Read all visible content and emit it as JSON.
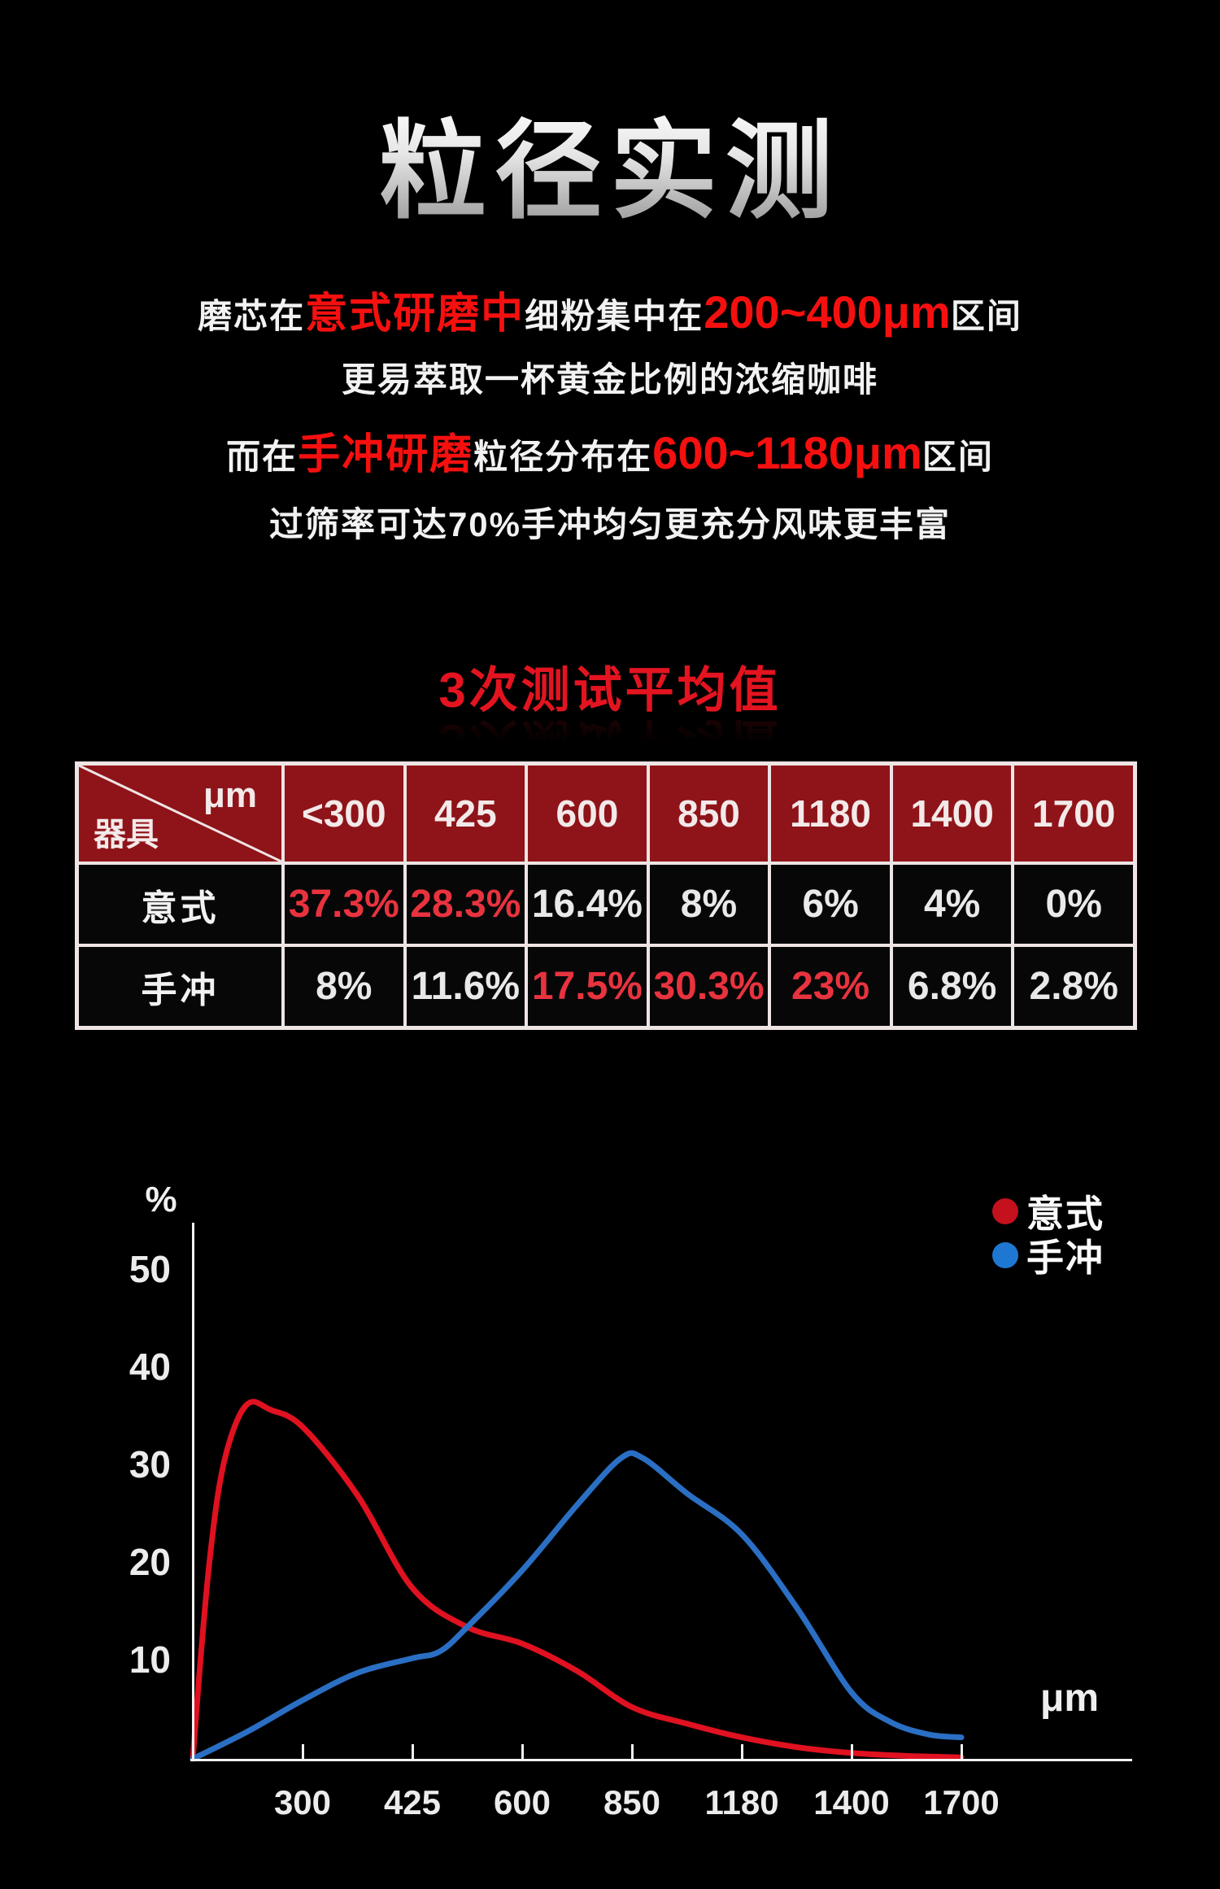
{
  "title": {
    "text": "粒径实测"
  },
  "intro": {
    "lines": [
      {
        "segments": [
          {
            "text": "磨芯在",
            "style": "white"
          },
          {
            "text": "意式研磨中",
            "style": "red"
          },
          {
            "text": "细粉集中在",
            "style": "white"
          },
          {
            "text": "200~400μm",
            "style": "rednum"
          },
          {
            "text": "区间",
            "style": "white"
          }
        ]
      },
      {
        "segments": [
          {
            "text": "更易萃取一杯黄金比例的浓缩咖啡",
            "style": "white"
          }
        ]
      },
      {
        "segments": [
          {
            "text": "而在",
            "style": "white"
          },
          {
            "text": "手冲研磨",
            "style": "red"
          },
          {
            "text": "粒径分布在",
            "style": "white"
          },
          {
            "text": "600~1180μm",
            "style": "rednum"
          },
          {
            "text": "区间",
            "style": "white"
          }
        ]
      },
      {
        "segments": [
          {
            "text": "过筛率可达70%手冲均匀更充分风味更丰富",
            "style": "white"
          }
        ]
      }
    ]
  },
  "section_heading": {
    "text": "3次测试平均值"
  },
  "table": {
    "corner": {
      "top_right": "μm",
      "bottom_left": "器具"
    },
    "columns": [
      "<300",
      "425",
      "600",
      "850",
      "1180",
      "1400",
      "1700"
    ],
    "rows": [
      {
        "label": "意式",
        "values": [
          {
            "text": "37.3%",
            "highlight": true
          },
          {
            "text": "28.3%",
            "highlight": true
          },
          {
            "text": "16.4%",
            "highlight": false
          },
          {
            "text": "8%",
            "highlight": false
          },
          {
            "text": "6%",
            "highlight": false
          },
          {
            "text": "4%",
            "highlight": false
          },
          {
            "text": "0%",
            "highlight": false
          }
        ]
      },
      {
        "label": "手冲",
        "values": [
          {
            "text": "8%",
            "highlight": false
          },
          {
            "text": "11.6%",
            "highlight": false
          },
          {
            "text": "17.5%",
            "highlight": true
          },
          {
            "text": "30.3%",
            "highlight": true
          },
          {
            "text": "23%",
            "highlight": true
          },
          {
            "text": "6.8%",
            "highlight": false
          },
          {
            "text": "2.8%",
            "highlight": false
          }
        ]
      }
    ]
  },
  "chart_data": {
    "type": "line",
    "title": "",
    "ylabel": "%",
    "xlabel": "μm",
    "ylim": [
      0,
      55
    ],
    "grid": false,
    "legend_position": "top-right",
    "y_ticks": [
      50,
      40,
      30,
      20,
      10
    ],
    "x_tick_labels": [
      "300",
      "425",
      "600",
      "850",
      "1180",
      "1400",
      "1700"
    ],
    "x_scale_note": "equal-interval sieve-size categories; series x values are category indices where 0 = axis origin, 1 = 300μm, 2 = 425μm, 3 = 600μm, 4 = 850μm, 5 = 1180μm, 6 = 1400μm, 7 = 1700μm",
    "legend": [
      {
        "key": "espresso",
        "label": "意式",
        "color": "#c5101d"
      },
      {
        "key": "pourover",
        "label": "手冲",
        "color": "#1e78d2"
      }
    ],
    "series": [
      {
        "key": "espresso",
        "name": "意式",
        "color": "#e01120",
        "points": [
          [
            0,
            0
          ],
          [
            0.07,
            10
          ],
          [
            0.15,
            20
          ],
          [
            0.25,
            28.5
          ],
          [
            0.38,
            34
          ],
          [
            0.52,
            36.5
          ],
          [
            0.7,
            35.8
          ],
          [
            1,
            34
          ],
          [
            1.5,
            27
          ],
          [
            2,
            17.5
          ],
          [
            2.5,
            13.5
          ],
          [
            3,
            11.8
          ],
          [
            3.5,
            9
          ],
          [
            4,
            5.3
          ],
          [
            4.5,
            3.6
          ],
          [
            5,
            2.2
          ],
          [
            5.5,
            1.2
          ],
          [
            6,
            0.6
          ],
          [
            6.5,
            0.3
          ],
          [
            7,
            0.15
          ]
        ]
      },
      {
        "key": "pourover",
        "name": "手冲",
        "color": "#2a6fc4",
        "points": [
          [
            0,
            0
          ],
          [
            0.5,
            2.8
          ],
          [
            1,
            6
          ],
          [
            1.5,
            8.8
          ],
          [
            2,
            10.3
          ],
          [
            2.25,
            11
          ],
          [
            2.5,
            13.5
          ],
          [
            3,
            19.3
          ],
          [
            3.5,
            26
          ],
          [
            3.9,
            30.8
          ],
          [
            4.1,
            30.8
          ],
          [
            4.5,
            27.2
          ],
          [
            5,
            23
          ],
          [
            5.5,
            15.5
          ],
          [
            6,
            6.8
          ],
          [
            6.35,
            3.8
          ],
          [
            6.7,
            2.5
          ],
          [
            7,
            2.2
          ]
        ]
      }
    ]
  },
  "colors": {
    "background": "#000000",
    "accent_red_text": "#f5100f",
    "heading_red": "#e31420",
    "table_header_bg": "#8e1419",
    "table_border": "#efe4e4",
    "highlight_value_red": "#e8333f",
    "curve_red": "#e01120",
    "curve_blue": "#2a6fc4",
    "axis_white": "#f2f2f2"
  }
}
